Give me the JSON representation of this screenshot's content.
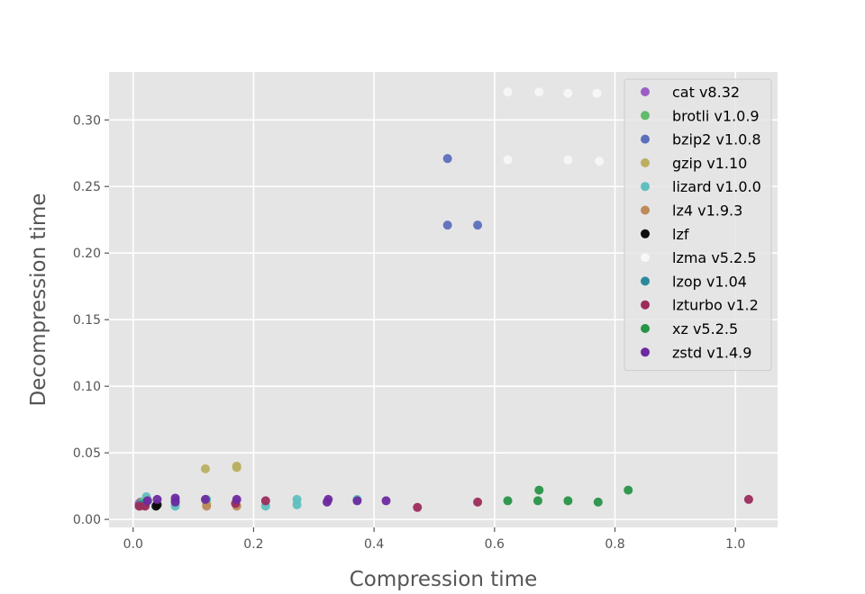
{
  "chart_data": {
    "type": "scatter",
    "title": "",
    "xlabel": "Compression time",
    "ylabel": "Decompression time",
    "xlim": [
      -0.04,
      1.07
    ],
    "ylim": [
      -0.006,
      0.336
    ],
    "xticks": [
      0.0,
      0.2,
      0.4,
      0.6,
      0.8,
      1.0
    ],
    "xtick_labels": [
      "0.0",
      "0.2",
      "0.4",
      "0.6",
      "0.8",
      "1.0"
    ],
    "yticks": [
      0.0,
      0.05,
      0.1,
      0.15,
      0.2,
      0.25,
      0.3
    ],
    "ytick_labels": [
      "0.00",
      "0.05",
      "0.10",
      "0.15",
      "0.20",
      "0.25",
      "0.30"
    ],
    "grid": true,
    "legend_position": "top-right",
    "series": [
      {
        "name": "cat v8.32",
        "color": "#9a5fc4",
        "points": [
          [
            0.01,
            0.012
          ],
          [
            0.012,
            0.013
          ]
        ]
      },
      {
        "name": "brotli v1.0.9",
        "color": "#62bb6d",
        "points": [
          [
            0.015,
            0.013
          ],
          [
            0.07,
            0.014
          ]
        ]
      },
      {
        "name": "bzip2 v1.0.8",
        "color": "#5c6fbc",
        "points": [
          [
            0.522,
            0.271
          ],
          [
            0.522,
            0.221
          ],
          [
            0.572,
            0.221
          ]
        ]
      },
      {
        "name": "gzip v1.10",
        "color": "#bbaf62",
        "points": [
          [
            0.12,
            0.038
          ],
          [
            0.172,
            0.039
          ],
          [
            0.172,
            0.04
          ],
          [
            0.122,
            0.012
          ]
        ]
      },
      {
        "name": "lizard v1.0.0",
        "color": "#5fbfbf",
        "points": [
          [
            0.022,
            0.017
          ],
          [
            0.07,
            0.01
          ],
          [
            0.122,
            0.015
          ],
          [
            0.22,
            0.01
          ],
          [
            0.272,
            0.015
          ],
          [
            0.272,
            0.011
          ],
          [
            0.372,
            0.015
          ]
        ]
      },
      {
        "name": "lz4 v1.9.3",
        "color": "#bd8a5b",
        "points": [
          [
            0.012,
            0.01
          ],
          [
            0.122,
            0.01
          ],
          [
            0.172,
            0.01
          ]
        ]
      },
      {
        "name": "lzf",
        "color": "#0d0d0d",
        "points": [
          [
            0.038,
            0.01
          ],
          [
            0.04,
            0.011
          ]
        ]
      },
      {
        "name": "lzma v5.2.5",
        "color": "#f7f7f7",
        "points": [
          [
            0.622,
            0.321
          ],
          [
            0.674,
            0.321
          ],
          [
            0.722,
            0.32
          ],
          [
            0.77,
            0.32
          ],
          [
            0.622,
            0.27
          ],
          [
            0.722,
            0.27
          ],
          [
            0.774,
            0.269
          ]
        ]
      },
      {
        "name": "lzop v1.04",
        "color": "#2b8a9a",
        "points": [
          [
            0.012,
            0.011
          ],
          [
            0.02,
            0.012
          ]
        ]
      },
      {
        "name": "lzturbo v1.2",
        "color": "#9b2c5c",
        "points": [
          [
            0.01,
            0.01
          ],
          [
            0.02,
            0.01
          ],
          [
            0.17,
            0.012
          ],
          [
            0.22,
            0.014
          ],
          [
            0.472,
            0.009
          ],
          [
            0.572,
            0.013
          ],
          [
            1.022,
            0.015
          ]
        ]
      },
      {
        "name": "xz v5.2.5",
        "color": "#279447",
        "points": [
          [
            0.622,
            0.014
          ],
          [
            0.672,
            0.014
          ],
          [
            0.674,
            0.022
          ],
          [
            0.722,
            0.014
          ],
          [
            0.772,
            0.013
          ],
          [
            0.822,
            0.022
          ]
        ]
      },
      {
        "name": "zstd v1.4.9",
        "color": "#6d2aa0",
        "points": [
          [
            0.024,
            0.014
          ],
          [
            0.04,
            0.015
          ],
          [
            0.07,
            0.016
          ],
          [
            0.07,
            0.013
          ],
          [
            0.12,
            0.015
          ],
          [
            0.172,
            0.015
          ],
          [
            0.322,
            0.013
          ],
          [
            0.324,
            0.015
          ],
          [
            0.372,
            0.014
          ],
          [
            0.42,
            0.014
          ]
        ]
      }
    ]
  }
}
